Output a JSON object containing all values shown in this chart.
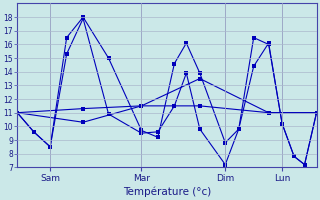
{
  "xlabel": "Température (°c)",
  "background_color": "#cbe8e8",
  "grid_color": "#aab8cc",
  "line_color": "#0000bb",
  "ylim": [
    7,
    19
  ],
  "yticks": [
    7,
    8,
    9,
    10,
    11,
    12,
    13,
    14,
    15,
    16,
    17,
    18
  ],
  "xlim": [
    0,
    1
  ],
  "day_positions": [
    0.11,
    0.415,
    0.695,
    0.885
  ],
  "day_labels": [
    "Sam",
    "Mar",
    "Dim",
    "Lun"
  ],
  "series": [
    {
      "x": [
        0.0,
        0.055,
        0.11,
        0.165,
        0.22,
        0.305,
        0.415,
        0.47,
        0.525,
        0.565,
        0.61,
        0.695,
        0.74,
        0.79,
        0.84,
        0.885,
        0.925,
        0.96,
        1.0
      ],
      "y": [
        11.0,
        9.6,
        8.5,
        16.5,
        18.0,
        15.0,
        9.7,
        9.2,
        14.6,
        16.1,
        13.9,
        8.8,
        9.8,
        16.5,
        16.0,
        10.2,
        7.8,
        7.2,
        11.0
      ]
    },
    {
      "x": [
        0.0,
        0.055,
        0.11,
        0.165,
        0.22,
        0.305,
        0.415,
        0.47,
        0.525,
        0.565,
        0.61,
        0.695,
        0.74,
        0.79,
        0.84,
        0.885,
        0.925,
        0.96,
        1.0
      ],
      "y": [
        11.0,
        9.6,
        8.5,
        15.3,
        17.9,
        10.9,
        9.5,
        9.6,
        11.5,
        13.9,
        9.8,
        7.2,
        9.8,
        14.4,
        16.1,
        10.2,
        7.8,
        7.2,
        11.0
      ]
    },
    {
      "x": [
        0.0,
        0.22,
        0.415,
        0.61,
        0.84,
        1.0
      ],
      "y": [
        11.0,
        11.3,
        11.5,
        11.5,
        11.0,
        11.0
      ]
    },
    {
      "x": [
        0.0,
        0.22,
        0.415,
        0.61,
        0.84,
        1.0
      ],
      "y": [
        11.0,
        10.3,
        11.5,
        13.5,
        11.0,
        11.0
      ]
    }
  ]
}
